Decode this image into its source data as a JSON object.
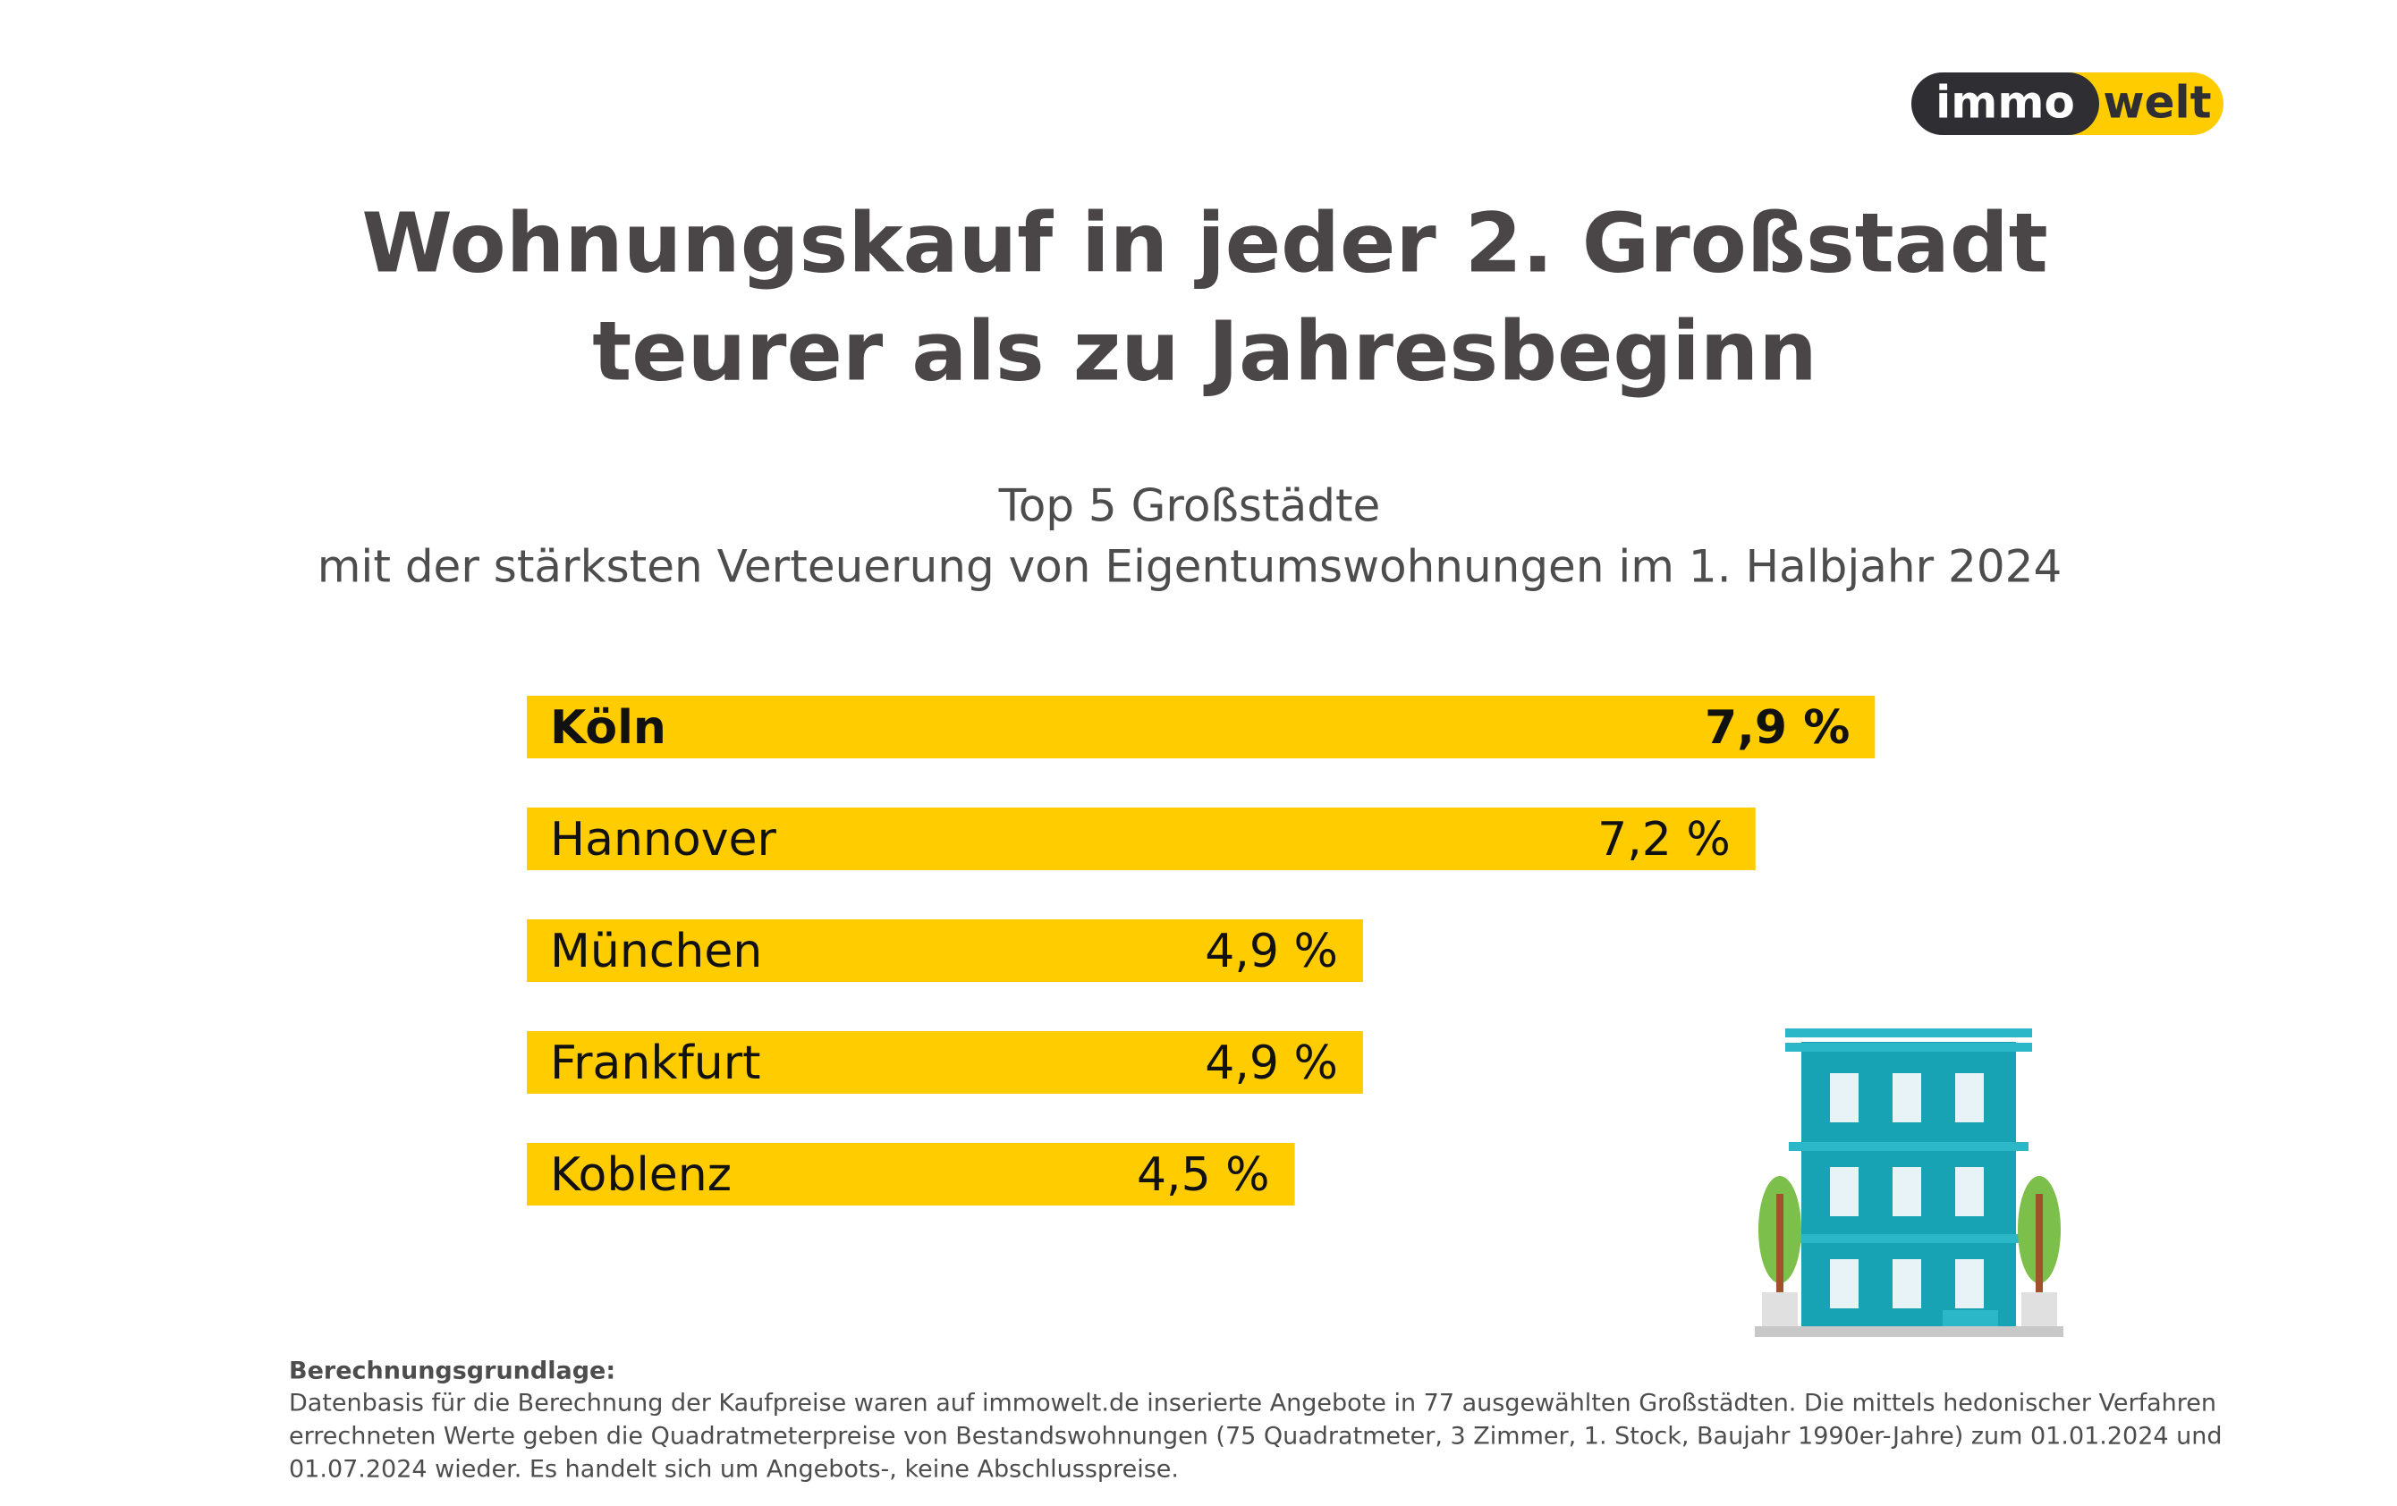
{
  "logo": {
    "left": "immo",
    "right": "welt"
  },
  "chart_data": {
    "type": "bar",
    "orientation": "horizontal",
    "title": [
      "Wohnungskauf in jeder 2. Großstadt",
      "teurer als zu Jahresbeginn"
    ],
    "subtitle": [
      "Top 5 Großstädte",
      "mit der stärksten Verteuerung von Eigentumswohnungen im 1. Halbjahr 2024"
    ],
    "categories": [
      "Köln",
      "Hannover",
      "München",
      "Frankfurt",
      "Koblenz"
    ],
    "values": [
      7.9,
      7.2,
      4.9,
      4.9,
      4.5
    ],
    "value_labels": [
      "7,9 %",
      "7,2 %",
      "4,9 %",
      "4,9 %",
      "4,5 %"
    ],
    "color": "#ffcc00"
  },
  "notes": {
    "heading": "Berechnungsgrundlage:",
    "lines": [
      "Datenbasis für die Berechnung der Kaufpreise waren auf immowelt.de inserierte Angebote in 77 ausgewählten Großstädten. Die mittels hedonischer Verfahren",
      "errechneten Werte geben die Quadratmeterpreise von Bestandswohnungen (75 Quadratmeter, 3 Zimmer, 1. Stock, Baujahr 1990er-Jahre) zum 01.01.2024 und",
      "01.07.2024 wieder. Es handelt sich um Angebots-, keine Abschlusspreise."
    ]
  }
}
